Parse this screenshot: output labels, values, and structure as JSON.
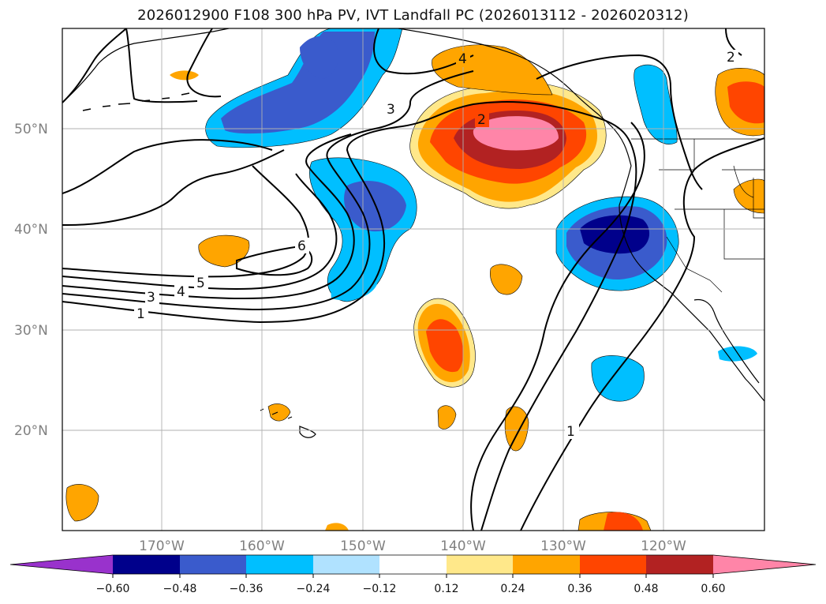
{
  "title": "2026012900 F108 300 hPa PV, IVT Landfall PC (2026013112 - 2026020312)",
  "map": {
    "lat_labels": [
      "50°N",
      "40°N",
      "30°N",
      "20°N"
    ],
    "lon_labels": [
      "170°W",
      "160°W",
      "150°W",
      "140°W",
      "130°W",
      "120°W"
    ],
    "contour_labels": [
      "1",
      "3",
      "4",
      "5",
      "6",
      "3",
      "2",
      "1",
      "4",
      "2"
    ]
  },
  "colorbar": {
    "ticks": [
      "−0.60",
      "−0.48",
      "−0.36",
      "−0.24",
      "−0.12",
      "0.12",
      "0.24",
      "0.36",
      "0.48",
      "0.60"
    ],
    "colors": [
      "#9932cc",
      "#00008b",
      "#3a5bcc",
      "#00bfff",
      "#b0e2ff",
      "#ffffff",
      "#ffe88a",
      "#ffa500",
      "#ff4500",
      "#b22222",
      "#ff85a8"
    ]
  }
}
